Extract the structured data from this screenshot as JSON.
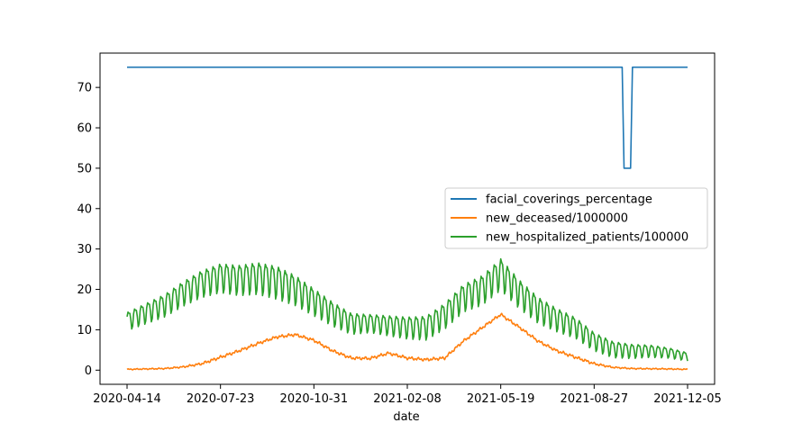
{
  "chart_data": {
    "type": "line",
    "title": "",
    "xlabel": "date",
    "ylabel": "",
    "x_tick_labels": [
      "2020-04-14",
      "2020-07-23",
      "2020-10-31",
      "2021-02-08",
      "2021-05-19",
      "2021-08-27",
      "2021-12-05"
    ],
    "x_range": [
      "2020-04-14",
      "2021-12-05"
    ],
    "y_ticks": [
      0,
      10,
      20,
      30,
      40,
      50,
      60,
      70
    ],
    "ylim": [
      -3.5,
      78.5
    ],
    "grid": false,
    "legend_position": "center-right",
    "series": [
      {
        "name": "facial_coverings_percentage",
        "color": "#1f77b4",
        "points": [
          [
            "2020-04-14",
            75
          ],
          [
            "2021-09-26",
            75
          ],
          [
            "2021-09-28",
            50
          ],
          [
            "2021-10-05",
            50
          ],
          [
            "2021-10-07",
            75
          ],
          [
            "2021-12-05",
            75
          ]
        ]
      },
      {
        "name": "new_deceased/1000000",
        "color": "#ff7f0e",
        "points": [
          [
            "2020-04-14",
            0.2
          ],
          [
            "2020-05-04",
            0.3
          ],
          [
            "2020-05-24",
            0.4
          ],
          [
            "2020-06-13",
            0.8
          ],
          [
            "2020-07-03",
            1.6
          ],
          [
            "2020-07-23",
            3.2
          ],
          [
            "2020-08-12",
            4.8
          ],
          [
            "2020-09-01",
            6.6
          ],
          [
            "2020-09-21",
            8.2
          ],
          [
            "2020-10-11",
            8.8
          ],
          [
            "2020-10-31",
            7.4
          ],
          [
            "2020-11-20",
            4.8
          ],
          [
            "2020-12-10",
            3.0
          ],
          [
            "2020-12-30",
            2.9
          ],
          [
            "2021-01-19",
            4.2
          ],
          [
            "2021-02-08",
            3.0
          ],
          [
            "2021-02-28",
            2.6
          ],
          [
            "2021-03-20",
            3.0
          ],
          [
            "2021-04-09",
            7.2
          ],
          [
            "2021-04-29",
            10.5
          ],
          [
            "2021-05-19",
            13.8
          ],
          [
            "2021-06-08",
            10.6
          ],
          [
            "2021-06-28",
            7.2
          ],
          [
            "2021-07-18",
            4.8
          ],
          [
            "2021-08-07",
            3.2
          ],
          [
            "2021-08-27",
            1.6
          ],
          [
            "2021-09-16",
            0.7
          ],
          [
            "2021-10-06",
            0.4
          ],
          [
            "2021-11-15",
            0.3
          ],
          [
            "2021-12-05",
            0.2
          ]
        ]
      },
      {
        "name": "new_hospitalized_patients/100000",
        "color": "#2ca02c",
        "points": [
          [
            "2020-04-14",
            12.5
          ],
          [
            "2020-05-04",
            14.5
          ],
          [
            "2020-05-24",
            16.5
          ],
          [
            "2020-06-13",
            19.5
          ],
          [
            "2020-07-03",
            22.0
          ],
          [
            "2020-07-23",
            23.5
          ],
          [
            "2020-08-12",
            23.0
          ],
          [
            "2020-09-01",
            23.5
          ],
          [
            "2020-09-21",
            22.5
          ],
          [
            "2020-10-11",
            20.5
          ],
          [
            "2020-10-31",
            17.5
          ],
          [
            "2020-11-20",
            14.5
          ],
          [
            "2020-12-10",
            12.0
          ],
          [
            "2020-12-30",
            12.0
          ],
          [
            "2021-01-19",
            11.5
          ],
          [
            "2021-02-08",
            11.0
          ],
          [
            "2021-02-28",
            11.0
          ],
          [
            "2021-03-20",
            14.0
          ],
          [
            "2021-04-09",
            18.5
          ],
          [
            "2021-04-29",
            20.5
          ],
          [
            "2021-05-19",
            24.5
          ],
          [
            "2021-06-08",
            19.5
          ],
          [
            "2021-06-28",
            15.5
          ],
          [
            "2021-07-18",
            13.0
          ],
          [
            "2021-08-07",
            11.0
          ],
          [
            "2021-08-27",
            7.5
          ],
          [
            "2021-09-16",
            5.5
          ],
          [
            "2021-10-06",
            5.0
          ],
          [
            "2021-10-26",
            5.0
          ],
          [
            "2021-11-15",
            4.5
          ],
          [
            "2021-12-05",
            3.5
          ]
        ],
        "weekly_oscillation_amplitude": [
          [
            "2020-04-14",
            2.2
          ],
          [
            "2020-07-23",
            3.5
          ],
          [
            "2020-09-21",
            4.0
          ],
          [
            "2020-12-30",
            2.2
          ],
          [
            "2021-05-19",
            3.8
          ],
          [
            "2021-08-27",
            2.2
          ],
          [
            "2021-12-05",
            1.0
          ]
        ]
      }
    ]
  }
}
